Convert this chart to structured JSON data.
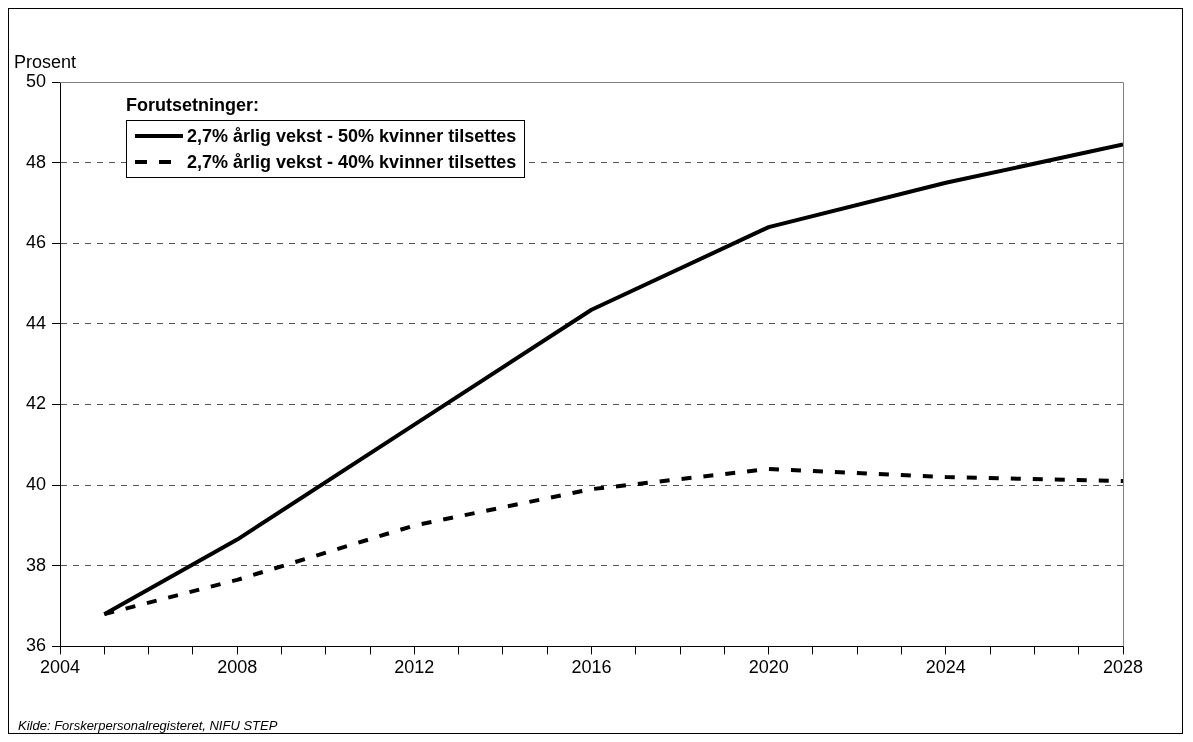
{
  "chart_data": {
    "type": "line",
    "ylabel": "Prosent",
    "legend_title": "Forutsetninger:",
    "annotations": [
      "Kilde: Forskerpersonalregisteret, NIFU STEP"
    ],
    "x": [
      2005,
      2008,
      2012,
      2016,
      2020,
      2024,
      2028
    ],
    "series": [
      {
        "name": "2,7% årlig vekst - 50% kvinner tilsettes",
        "color": "#000000",
        "line_style": "solid",
        "values": [
          36.8,
          38.65,
          41.5,
          44.35,
          46.4,
          47.5,
          48.45
        ]
      },
      {
        "name": "2,7% årlig vekst - 40% kvinner tilsettes",
        "color": "#000000",
        "line_style": "dashed",
        "values": [
          36.8,
          37.65,
          39.0,
          39.9,
          40.4,
          40.2,
          40.1
        ]
      }
    ],
    "xlim": [
      2004,
      2028
    ],
    "xticks": [
      2004,
      {
        "value": 2005,
        "label": null
      },
      {
        "value": 2006,
        "label": null
      },
      {
        "value": 2007,
        "label": null
      },
      2008,
      {
        "value": 2009,
        "label": null
      },
      {
        "value": 2010,
        "label": null
      },
      {
        "value": 2011,
        "label": null
      },
      2012,
      {
        "value": 2013,
        "label": null
      },
      {
        "value": 2014,
        "label": null
      },
      {
        "value": 2015,
        "label": null
      },
      2016,
      {
        "value": 2017,
        "label": null
      },
      {
        "value": 2018,
        "label": null
      },
      {
        "value": 2019,
        "label": null
      },
      2020,
      {
        "value": 2021,
        "label": null
      },
      {
        "value": 2022,
        "label": null
      },
      {
        "value": 2023,
        "label": null
      },
      2024,
      {
        "value": 2025,
        "label": null
      },
      {
        "value": 2026,
        "label": null
      },
      {
        "value": 2027,
        "label": null
      },
      2028
    ],
    "ylim": [
      36,
      50
    ],
    "yticks": [
      36,
      38,
      40,
      42,
      44,
      46,
      48,
      50
    ],
    "grid": "y",
    "legend": "top left",
    "marker": "none"
  }
}
